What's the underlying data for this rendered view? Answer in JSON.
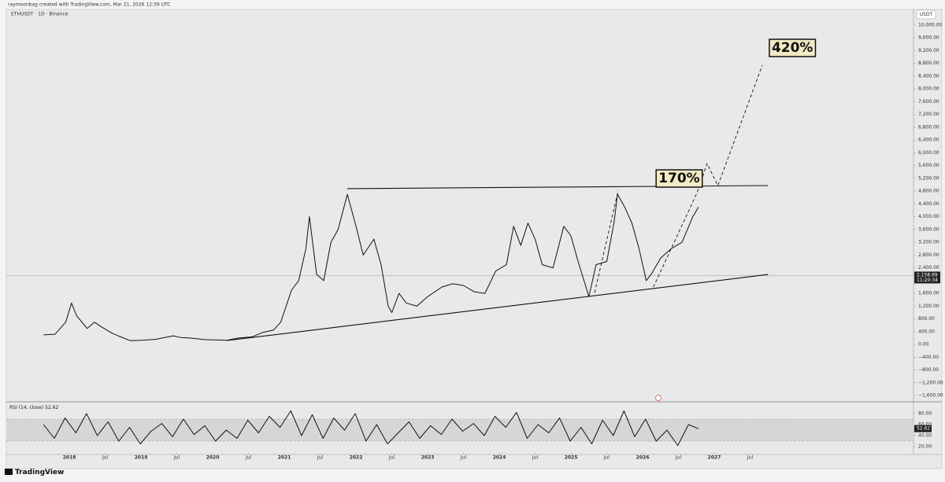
{
  "header": {
    "credit": "raymoonbag created with TradingView.com, Mar 21, 2026 12:39 UTC",
    "logo": "TradingView",
    "currency": "USDT",
    "countdown": "11:20:34"
  },
  "chart_data": [
    {
      "type": "line",
      "title": "ETHUSDT · 1D · Binance",
      "color": "#111111",
      "x": [
        2017.64,
        2017.8,
        2017.95,
        2018.03,
        2018.1,
        2018.25,
        2018.35,
        2018.45,
        2018.6,
        2018.7,
        2018.85,
        2019.0,
        2019.2,
        2019.45,
        2019.55,
        2019.7,
        2019.9,
        2020.2,
        2020.35,
        2020.55,
        2020.7,
        2020.85,
        2020.95,
        2021.1,
        2021.2,
        2021.3,
        2021.35,
        2021.45,
        2021.55,
        2021.65,
        2021.75,
        2021.88,
        2022.0,
        2022.1,
        2022.25,
        2022.35,
        2022.45,
        2022.5,
        2022.6,
        2022.7,
        2022.85,
        2023.0,
        2023.2,
        2023.35,
        2023.5,
        2023.65,
        2023.8,
        2023.95,
        2024.1,
        2024.2,
        2024.3,
        2024.4,
        2024.5,
        2024.6,
        2024.75,
        2024.9,
        2025.0,
        2025.1,
        2025.25,
        2025.35,
        2025.5,
        2025.6,
        2025.65,
        2025.75,
        2025.85,
        2025.95,
        2026.05,
        2026.12,
        2026.25,
        2026.4,
        2026.55,
        2026.7,
        2026.78
      ],
      "values": [
        300,
        320,
        700,
        1300,
        900,
        500,
        700,
        550,
        350,
        250,
        120,
        130,
        160,
        270,
        220,
        200,
        150,
        130,
        200,
        240,
        380,
        450,
        700,
        1700,
        2000,
        3000,
        4000,
        2200,
        2000,
        3200,
        3600,
        4700,
        3700,
        2800,
        3300,
        2500,
        1200,
        1000,
        1600,
        1300,
        1200,
        1500,
        1800,
        1900,
        1850,
        1650,
        1600,
        2300,
        2500,
        3700,
        3100,
        3800,
        3300,
        2500,
        2400,
        3700,
        3400,
        2600,
        1500,
        2500,
        2600,
        3800,
        4700,
        4300,
        3800,
        3000,
        2000,
        2200,
        2700,
        3000,
        3200,
        4000,
        4300
      ],
      "last_price": {
        "value": 2158.69,
        "label": "2,158.69"
      },
      "trendlines": [
        {
          "style": "solid",
          "x": [
            2021.88,
            2027.75
          ],
          "values": [
            4880,
            4975
          ]
        },
        {
          "style": "solid",
          "x": [
            2020.2,
            2027.75
          ],
          "values": [
            123,
            2192
          ]
        },
        {
          "style": "dashed",
          "x": [
            2025.33,
            2025.66
          ],
          "values": [
            1626,
            4828
          ]
        },
        {
          "style": "dashed",
          "x": [
            2026.15,
            2026.76,
            2026.9,
            2027.05,
            2027.67
          ],
          "values": [
            1798,
            4754,
            5665,
            4975,
            8744
          ]
        }
      ],
      "annotations": [
        {
          "text": "170%",
          "x": 2026.51,
          "y": 5222
        },
        {
          "text": "420%",
          "x": 2028.09,
          "y": 9310
        }
      ],
      "xlim": [
        2017.12,
        2029.78
      ],
      "xticks": [
        2018,
        {
          "value": 2018.5,
          "label": "Jul"
        },
        2019,
        {
          "value": 2019.5,
          "label": "Jul"
        },
        2020,
        {
          "value": 2020.5,
          "label": "Jul"
        },
        2021,
        {
          "value": 2021.5,
          "label": "Jul"
        },
        2022,
        {
          "value": 2022.5,
          "label": "Jul"
        },
        2023,
        {
          "value": 2023.5,
          "label": "Jul"
        },
        2024,
        {
          "value": 2024.5,
          "label": "Jul"
        },
        2025,
        {
          "value": 2025.5,
          "label": "Jul"
        },
        2026,
        {
          "value": 2026.5,
          "label": "Jul"
        },
        2027,
        {
          "value": 2027.5,
          "label": "Jul"
        }
      ],
      "ylim": [
        -1770,
        10490
      ],
      "yticks": [
        {
          "value": 10000,
          "label": "10,000.00"
        },
        {
          "value": 9600,
          "label": "9,600.00"
        },
        {
          "value": 9200,
          "label": "9,200.00"
        },
        {
          "value": 8800,
          "label": "8,800.00"
        },
        {
          "value": 8400,
          "label": "8,400.00"
        },
        {
          "value": 8000,
          "label": "8,000.00"
        },
        {
          "value": 7600,
          "label": "7,600.00"
        },
        {
          "value": 7200,
          "label": "7,200.00"
        },
        {
          "value": 6800,
          "label": "6,800.00"
        },
        {
          "value": 6400,
          "label": "6,400.00"
        },
        {
          "value": 6000,
          "label": "6,000.00"
        },
        {
          "value": 5600,
          "label": "5,600.00"
        },
        {
          "value": 5200,
          "label": "5,200.00"
        },
        {
          "value": 4800,
          "label": "4,800.00"
        },
        {
          "value": 4400,
          "label": "4,400.00"
        },
        {
          "value": 4000,
          "label": "4,000.00"
        },
        {
          "value": 3600,
          "label": "3,600.00"
        },
        {
          "value": 3200,
          "label": "3,200.00"
        },
        {
          "value": 2800,
          "label": "2,800.00"
        },
        {
          "value": 2400,
          "label": "2,400.00"
        },
        {
          "value": 1600,
          "label": "1,600.00"
        },
        {
          "value": 1200,
          "label": "1,200.00"
        },
        {
          "value": 800,
          "label": "800.00"
        },
        {
          "value": 400,
          "label": "400.00"
        },
        {
          "value": 0,
          "label": "0.00"
        },
        {
          "value": -400,
          "label": "−400.00"
        },
        {
          "value": -800,
          "label": "−800.00"
        },
        {
          "value": -1200,
          "label": "−1,200.00"
        },
        {
          "value": -1600,
          "label": "−1,600.00"
        }
      ],
      "grid": false
    },
    {
      "type": "line",
      "title": "RSI (14, close)",
      "color": "#111111",
      "x": [
        2017.64,
        2017.79,
        2017.94,
        2018.09,
        2018.24,
        2018.39,
        2018.54,
        2018.69,
        2018.84,
        2018.99,
        2019.14,
        2019.29,
        2019.44,
        2019.59,
        2019.74,
        2019.89,
        2020.04,
        2020.19,
        2020.34,
        2020.49,
        2020.64,
        2020.79,
        2020.94,
        2021.09,
        2021.24,
        2021.39,
        2021.54,
        2021.69,
        2021.84,
        2021.99,
        2022.14,
        2022.29,
        2022.44,
        2022.59,
        2022.74,
        2022.89,
        2023.04,
        2023.19,
        2023.34,
        2023.49,
        2023.64,
        2023.79,
        2023.94,
        2024.09,
        2024.24,
        2024.39,
        2024.54,
        2024.69,
        2024.84,
        2024.99,
        2025.14,
        2025.29,
        2025.44,
        2025.59,
        2025.74,
        2025.89,
        2026.04,
        2026.19,
        2026.34,
        2026.49,
        2026.64,
        2026.78
      ],
      "values": [
        60,
        35,
        72,
        45,
        80,
        40,
        65,
        30,
        55,
        25,
        48,
        62,
        38,
        70,
        42,
        58,
        30,
        50,
        35,
        68,
        45,
        75,
        55,
        85,
        40,
        78,
        35,
        72,
        50,
        80,
        30,
        60,
        25,
        45,
        65,
        35,
        58,
        42,
        70,
        48,
        62,
        40,
        75,
        55,
        82,
        35,
        60,
        45,
        72,
        30,
        55,
        25,
        68,
        40,
        85,
        38,
        70,
        30,
        50,
        22,
        60,
        52.62
      ],
      "band": [
        30,
        70
      ],
      "xlim": [
        2017.12,
        2029.78
      ],
      "ylim": [
        0,
        100
      ],
      "yticks": [
        {
          "value": 80,
          "label": "80.00"
        },
        {
          "value": 60,
          "label": "60.00"
        },
        {
          "value": 40,
          "label": "40.00"
        },
        {
          "value": 20,
          "label": "20.00"
        }
      ]
    }
  ]
}
